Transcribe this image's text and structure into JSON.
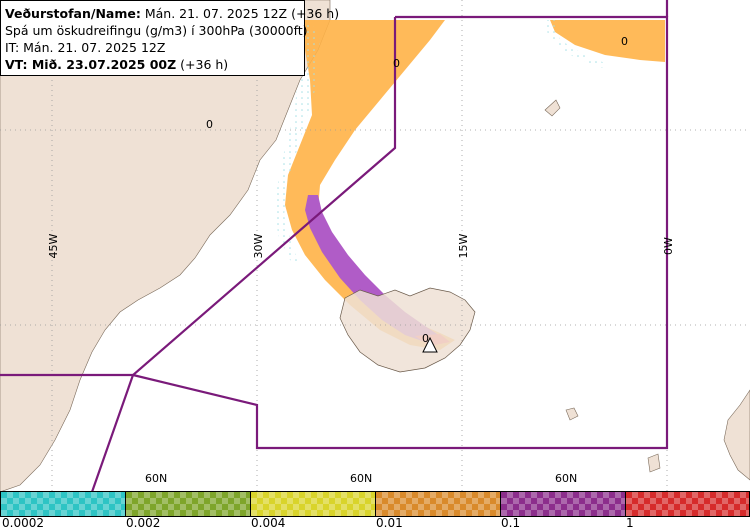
{
  "header": {
    "line1_label": "Veðurstofan/Name:",
    "line1_value": " Mán. 21. 07. 2025 12Z (+36 h)",
    "line2": "Spá um öskudreifingu (g/m3) í 300hPa (30000ft)",
    "line3": "IT: Mán. 21. 07. 2025 12Z",
    "line4_label": "VT: Mið. 23.07.2025 00Z",
    "line4_value": " (+36 h)"
  },
  "map": {
    "longitude_labels": [
      "45W",
      "30W",
      "15W",
      "0W"
    ],
    "latitude_labels": [
      "60N",
      "60N",
      "60N"
    ],
    "contour_labels": [
      "0",
      "0",
      "0",
      "0"
    ],
    "colors": {
      "land": "#efe1d5",
      "sea": "#ffffff",
      "conc_low": "#ffb347",
      "conc_mid": "#ffd7a0",
      "conc_high": "#b05cc7",
      "conc_top": "#ff6f6f",
      "boundary": "#7a1a7a"
    }
  },
  "legend": {
    "labels": [
      "0.0002",
      "0.002",
      "0.004",
      "0.01",
      "0.1",
      "1"
    ],
    "colors": [
      "#2ec4c4",
      "#7ea52a",
      "#d9d42b",
      "#d98a2b",
      "#8c2e8c",
      "#d62b2b"
    ]
  }
}
